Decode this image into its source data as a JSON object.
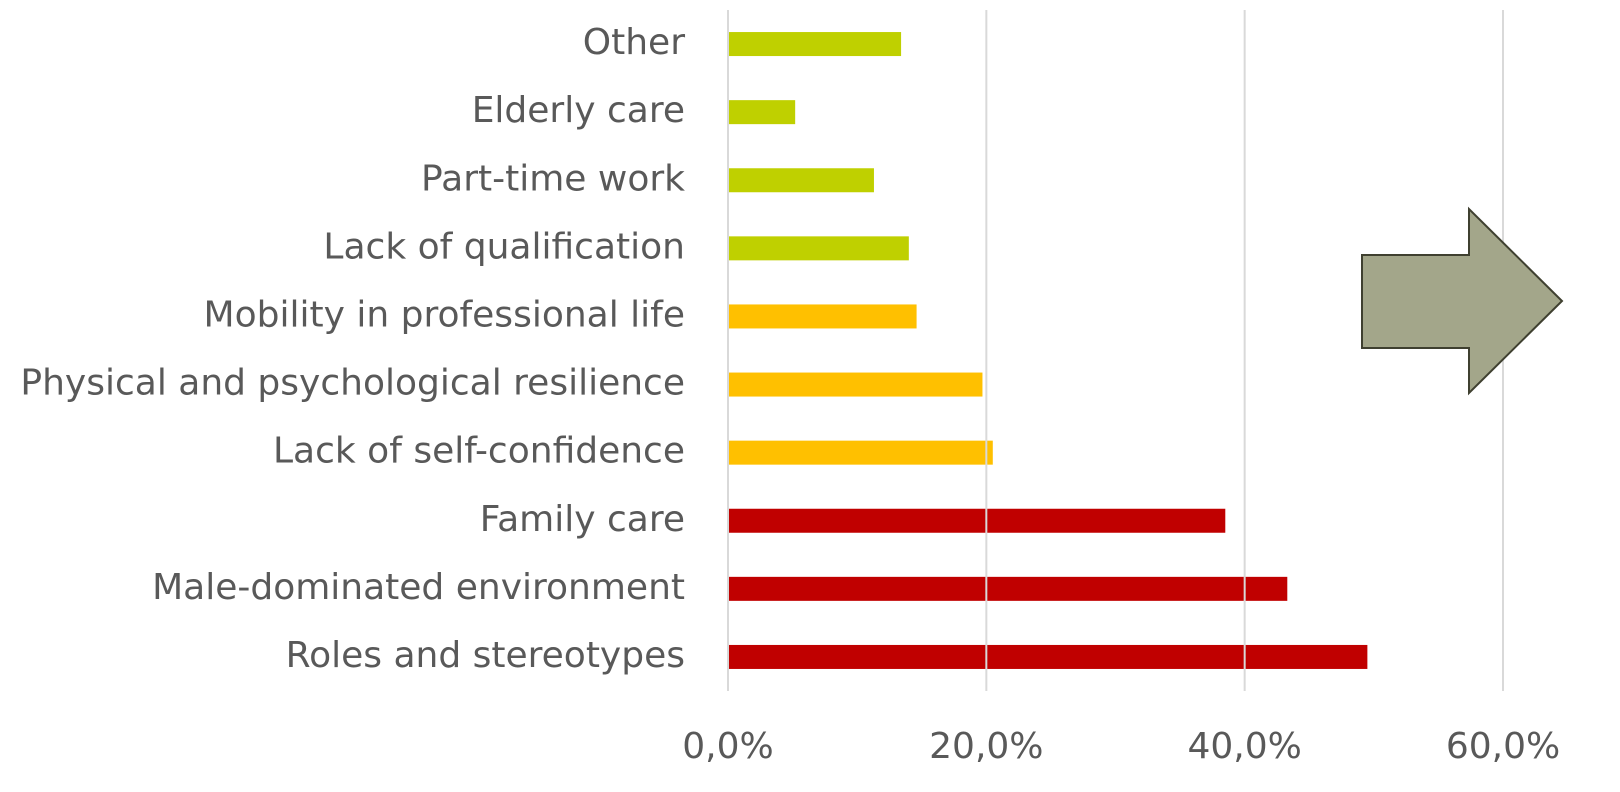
{
  "chart_data": {
    "type": "bar",
    "orientation": "horizontal",
    "categories": [
      "Other",
      "Elderly care",
      "Part-time work",
      "Lack of qualification",
      "Mobility in professional life",
      "Physical and psychological resilience",
      "Lack of self-confidence",
      "Family care",
      "Male-dominated environment",
      "Roles and stereotypes"
    ],
    "values": [
      13.4,
      5.2,
      11.3,
      14.0,
      14.6,
      19.7,
      20.5,
      38.5,
      43.3,
      49.5
    ],
    "colors": [
      "#bfd000",
      "#bfd000",
      "#bfd000",
      "#bfd000",
      "#ffc000",
      "#ffc000",
      "#ffc000",
      "#c00000",
      "#c00000",
      "#c00000"
    ],
    "xlim": [
      0,
      60
    ],
    "xticks": [
      {
        "value": 0,
        "label": "0,0%"
      },
      {
        "value": 20,
        "label": "20,0%"
      },
      {
        "value": 40,
        "label": "40,0%"
      },
      {
        "value": 60,
        "label": "60,0%"
      }
    ],
    "grid": true
  }
}
